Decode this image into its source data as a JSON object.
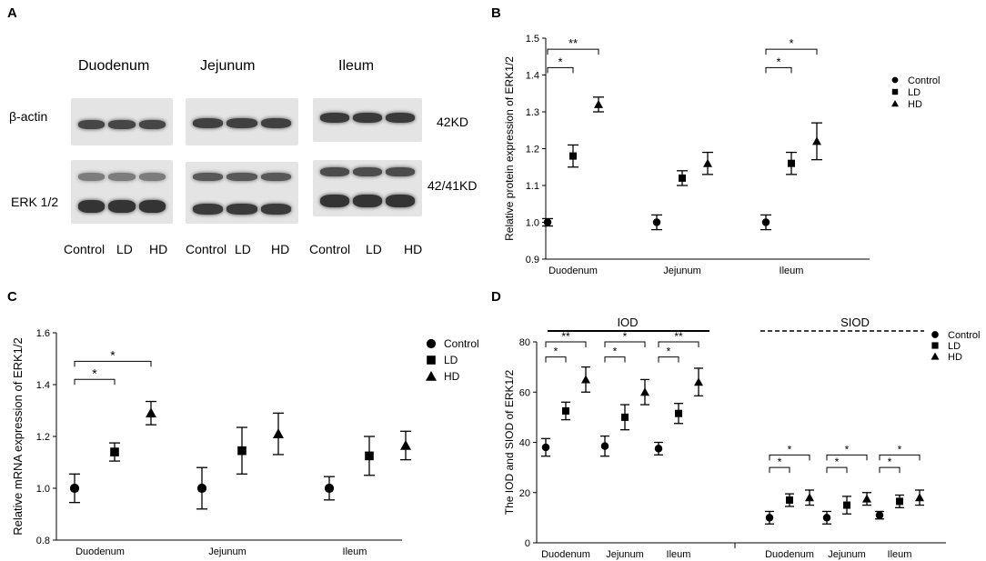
{
  "panels": {
    "a": "A",
    "b": "B",
    "c": "C",
    "d": "D"
  },
  "western_blot": {
    "regions": [
      "Duodenum",
      "Jejunum",
      "Ileum"
    ],
    "rows": [
      "β-actin",
      "ERK 1/2"
    ],
    "sizes": [
      "42KD",
      "42/41KD"
    ],
    "lanes": [
      "Control",
      "LD",
      "HD",
      "Control",
      "LD",
      "HD",
      "Control",
      "LD",
      "HD"
    ]
  },
  "chart_data": [
    {
      "id": "B",
      "type": "scatter",
      "ylabel": "Relative protein expression of ERK1/2",
      "ylim": [
        0.9,
        1.5
      ],
      "yticks": [
        "0.9",
        "1.0",
        "1.1",
        "1.2",
        "1.3",
        "1.4",
        "1.5"
      ],
      "categories": [
        "Duodenum",
        "Jejunum",
        "Ileum"
      ],
      "series": [
        {
          "name": "Control",
          "values": [
            1.0,
            1.0,
            1.0
          ],
          "errors": [
            0.01,
            0.02,
            0.02
          ]
        },
        {
          "name": "LD",
          "values": [
            1.18,
            1.12,
            1.16
          ],
          "errors": [
            0.03,
            0.02,
            0.03
          ]
        },
        {
          "name": "HD",
          "values": [
            1.32,
            1.16,
            1.22
          ],
          "errors": [
            0.02,
            0.03,
            0.05
          ]
        }
      ],
      "legend": "right",
      "annotations": [
        {
          "category": 0,
          "from": 0,
          "to": 1,
          "label": "*",
          "level": 1.42
        },
        {
          "category": 0,
          "from": 0,
          "to": 2,
          "label": "**",
          "level": 1.47
        },
        {
          "category": 2,
          "from": 0,
          "to": 1,
          "label": "*",
          "level": 1.42
        },
        {
          "category": 2,
          "from": 0,
          "to": 2,
          "label": "*",
          "level": 1.47
        }
      ]
    },
    {
      "id": "C",
      "type": "scatter",
      "ylabel": "Relative mRNA expression of ERK1/2",
      "ylim": [
        0.8,
        1.6
      ],
      "yticks": [
        "0.8",
        "1.0",
        "1.2",
        "1.4",
        "1.6"
      ],
      "categories": [
        "Duodenum",
        "Jejunum",
        "Ileum"
      ],
      "series": [
        {
          "name": "Control",
          "values": [
            1.0,
            1.0,
            1.0
          ],
          "errors": [
            0.055,
            0.08,
            0.045
          ]
        },
        {
          "name": "LD",
          "values": [
            1.14,
            1.145,
            1.125
          ],
          "errors": [
            0.035,
            0.09,
            0.075
          ]
        },
        {
          "name": "HD",
          "values": [
            1.29,
            1.21,
            1.165
          ],
          "errors": [
            0.045,
            0.08,
            0.055
          ]
        }
      ],
      "legend": "right",
      "annotations": [
        {
          "category": 0,
          "from": 0,
          "to": 1,
          "label": "*",
          "level": 1.42
        },
        {
          "category": 0,
          "from": 0,
          "to": 2,
          "label": "*",
          "level": 1.49
        }
      ]
    },
    {
      "id": "D",
      "type": "scatter",
      "ylabel": "The IOD and SIOD of ERK1/2",
      "ylim": [
        0,
        80
      ],
      "yticks": [
        "0",
        "20",
        "40",
        "60",
        "80"
      ],
      "groups": [
        {
          "label": "IOD",
          "line": "solid",
          "categories": [
            "Duodenum",
            "Jejunum",
            "Ileum"
          ]
        },
        {
          "label": "SIOD",
          "line": "dashed",
          "categories": [
            "Duodenum",
            "Jejunum",
            "Ileum"
          ]
        }
      ],
      "series": [
        {
          "name": "Control",
          "values": [
            38,
            38.5,
            37.5,
            10,
            10,
            11
          ],
          "errors": [
            3.5,
            4,
            2.5,
            2.5,
            2.5,
            1.5
          ]
        },
        {
          "name": "LD",
          "values": [
            52.5,
            50,
            51.5,
            17,
            15,
            16.5
          ],
          "errors": [
            3.5,
            5,
            4,
            2.5,
            3.5,
            2.5
          ]
        },
        {
          "name": "HD",
          "values": [
            65,
            60,
            64,
            18,
            17.5,
            18
          ],
          "errors": [
            5,
            5,
            5.5,
            3,
            2.5,
            3
          ]
        }
      ],
      "legend": "right",
      "annotations": [
        {
          "category": 0,
          "from": 0,
          "to": 1,
          "label": "*",
          "level": 74
        },
        {
          "category": 0,
          "from": 0,
          "to": 2,
          "label": "**",
          "level": 80
        },
        {
          "category": 1,
          "from": 0,
          "to": 1,
          "label": "*",
          "level": 74
        },
        {
          "category": 1,
          "from": 0,
          "to": 2,
          "label": "*",
          "level": 80
        },
        {
          "category": 2,
          "from": 0,
          "to": 1,
          "label": "*",
          "level": 74
        },
        {
          "category": 2,
          "from": 0,
          "to": 2,
          "label": "**",
          "level": 80
        },
        {
          "category": 3,
          "from": 0,
          "to": 1,
          "label": "*",
          "level": 30
        },
        {
          "category": 3,
          "from": 0,
          "to": 2,
          "label": "*",
          "level": 35
        },
        {
          "category": 4,
          "from": 0,
          "to": 1,
          "label": "*",
          "level": 30
        },
        {
          "category": 4,
          "from": 0,
          "to": 2,
          "label": "*",
          "level": 35
        },
        {
          "category": 5,
          "from": 0,
          "to": 1,
          "label": "*",
          "level": 30
        },
        {
          "category": 5,
          "from": 0,
          "to": 2,
          "label": "*",
          "level": 35
        }
      ]
    }
  ]
}
